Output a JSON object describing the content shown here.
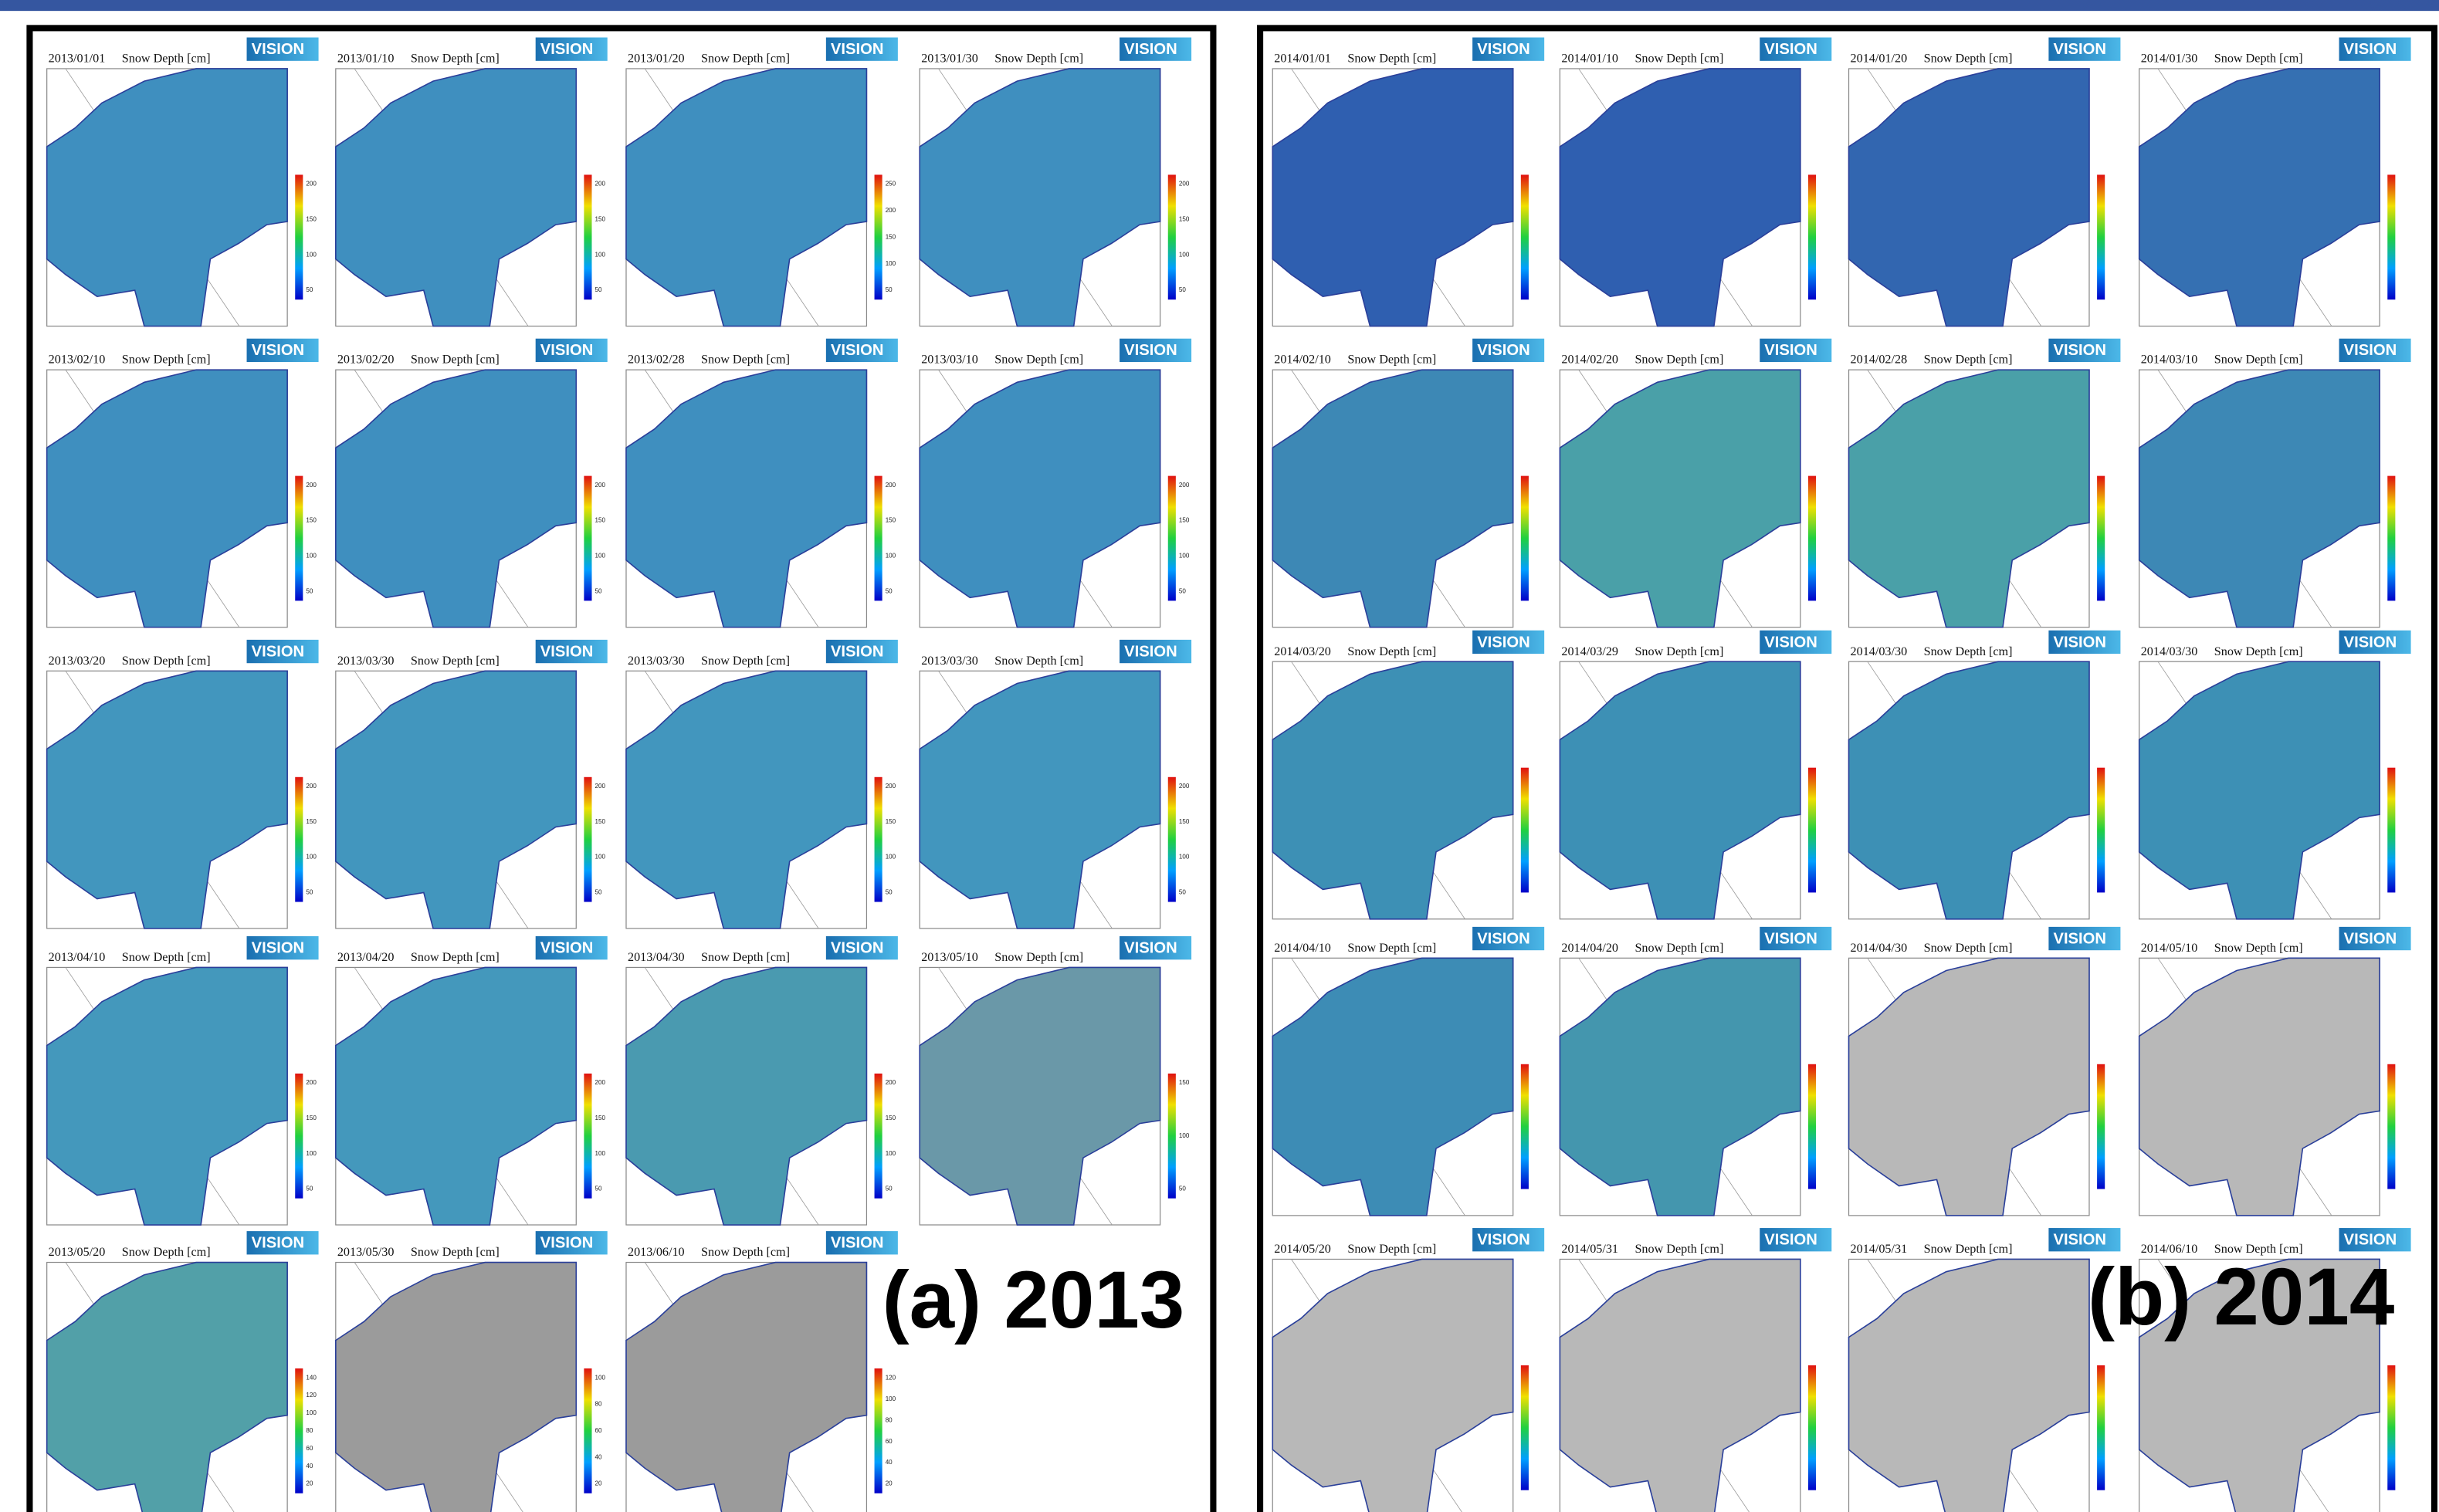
{
  "panel_title": "Snow Depth [cm]",
  "logo": "VISION",
  "left": {
    "label": "(a) 2013",
    "panels": [
      {
        "date": "2013/01/01",
        "color": "#3f8fbf",
        "ticks": [
          200,
          150,
          100,
          50
        ]
      },
      {
        "date": "2013/01/10",
        "color": "#3f8fbf",
        "ticks": [
          200,
          150,
          100,
          50
        ]
      },
      {
        "date": "2013/01/20",
        "color": "#3f8fbf",
        "ticks": [
          250,
          200,
          150,
          100,
          50
        ]
      },
      {
        "date": "2013/01/30",
        "color": "#3f8fbf",
        "ticks": [
          200,
          150,
          100,
          50
        ]
      },
      {
        "date": "2013/02/10",
        "color": "#3f8fbf",
        "ticks": [
          200,
          150,
          100,
          50
        ]
      },
      {
        "date": "2013/02/20",
        "color": "#3f8fbf",
        "ticks": [
          200,
          150,
          100,
          50
        ]
      },
      {
        "date": "2013/02/28",
        "color": "#3f8fbf",
        "ticks": [
          200,
          150,
          100,
          50
        ]
      },
      {
        "date": "2013/03/10",
        "color": "#3f8fbf",
        "ticks": [
          200,
          150,
          100,
          50
        ]
      },
      {
        "date": "2013/03/20",
        "color": "#4296be",
        "ticks": [
          200,
          150,
          100,
          50
        ]
      },
      {
        "date": "2013/03/30",
        "color": "#4296be",
        "ticks": [
          200,
          150,
          100,
          50
        ]
      },
      {
        "date": "2013/03/30",
        "color": "#4296be",
        "ticks": [
          200,
          150,
          100,
          50
        ]
      },
      {
        "date": "2013/03/30",
        "color": "#4296be",
        "ticks": [
          200,
          150,
          100,
          50
        ]
      },
      {
        "date": "2013/04/10",
        "color": "#4498bc",
        "ticks": [
          200,
          150,
          100,
          50
        ]
      },
      {
        "date": "2013/04/20",
        "color": "#4498bc",
        "ticks": [
          200,
          150,
          100,
          50
        ]
      },
      {
        "date": "2013/04/30",
        "color": "#4a9ab0",
        "ticks": [
          200,
          150,
          100,
          50
        ]
      },
      {
        "date": "2013/05/10",
        "color": "#6a98a8",
        "ticks": [
          150,
          100,
          50
        ]
      },
      {
        "date": "2013/05/20",
        "color": "#52a0a8",
        "ticks": [
          140,
          120,
          100,
          80,
          60,
          40,
          20
        ]
      },
      {
        "date": "2013/05/30",
        "color": "#9b9b9b",
        "ticks": [
          100,
          80,
          60,
          40,
          20
        ]
      },
      {
        "date": "2013/06/10",
        "color": "#9b9b9b",
        "ticks": [
          120,
          100,
          80,
          60,
          40,
          20
        ]
      }
    ]
  },
  "right": {
    "label": "(b) 2014",
    "panels": [
      {
        "date": "2014/01/01",
        "color": "#2f5fb0"
      },
      {
        "date": "2014/01/10",
        "color": "#2f5fb0"
      },
      {
        "date": "2014/01/20",
        "color": "#3266b0"
      },
      {
        "date": "2014/01/30",
        "color": "#3570b2"
      },
      {
        "date": "2014/02/10",
        "color": "#3d88b5"
      },
      {
        "date": "2014/02/20",
        "color": "#4aa0a8"
      },
      {
        "date": "2014/02/28",
        "color": "#4aa0a8"
      },
      {
        "date": "2014/03/10",
        "color": "#3d88b5"
      },
      {
        "date": "2014/03/20",
        "color": "#3d90b5"
      },
      {
        "date": "2014/03/29",
        "color": "#3d90b5"
      },
      {
        "date": "2014/03/30",
        "color": "#3d90b5"
      },
      {
        "date": "2014/03/30",
        "color": "#3d90b5"
      },
      {
        "date": "2014/04/10",
        "color": "#3d8cb5"
      },
      {
        "date": "2014/04/20",
        "color": "#4496ae"
      },
      {
        "date": "2014/04/30",
        "color": "#b8b8b8"
      },
      {
        "date": "2014/05/10",
        "color": "#b8b8b8"
      },
      {
        "date": "2014/05/20",
        "color": "#b8b8b8"
      },
      {
        "date": "2014/05/31",
        "color": "#b8b8b8"
      },
      {
        "date": "2014/05/31",
        "color": "#b8b8b8"
      },
      {
        "date": "2014/06/10",
        "color": "#b8b8b8"
      }
    ]
  }
}
